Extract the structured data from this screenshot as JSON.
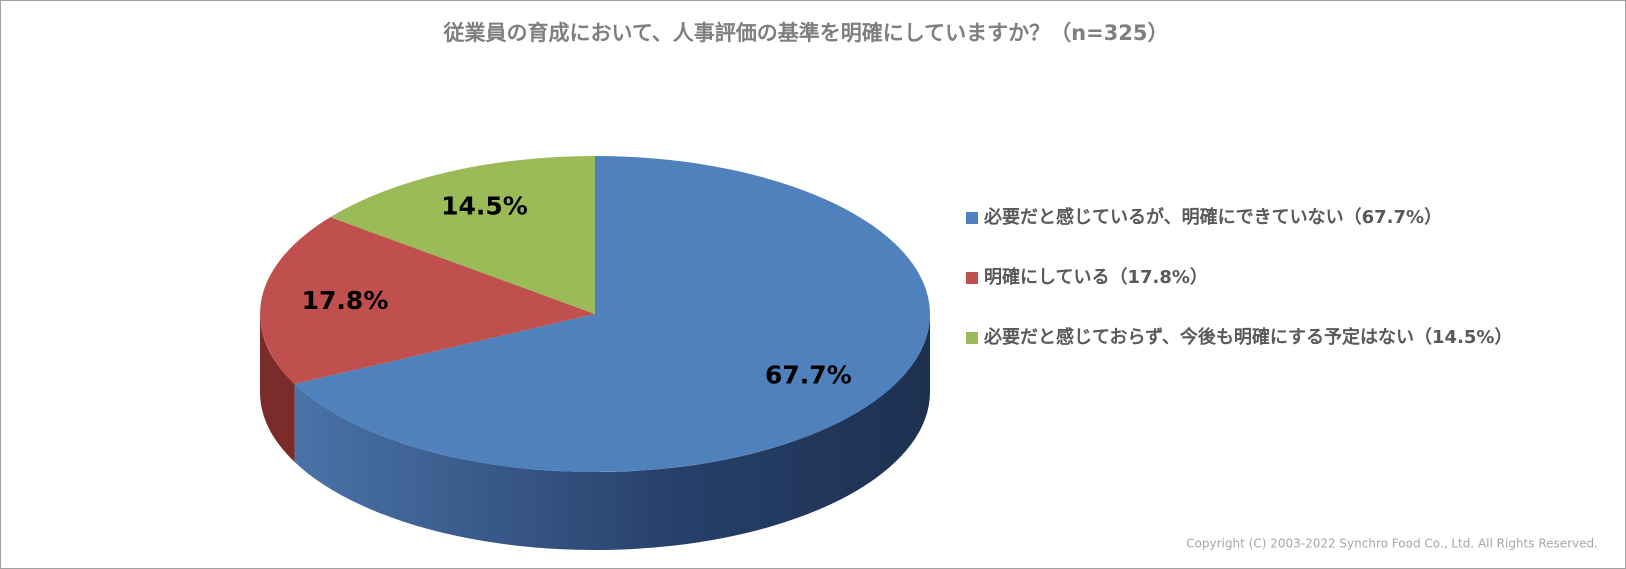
{
  "chart_data": {
    "type": "pie3d",
    "title": "従業員の育成において、人事評価の基準を明確にしていますか？（n=325）",
    "categories": [
      "必要だと感じているが、明確にできていない（67.7%）",
      "明確にしている（17.8%）",
      "必要だと感じておらず、今後も明確にする予定はない（14.5%）"
    ],
    "values": [
      67.7,
      17.8,
      14.5
    ],
    "value_labels": [
      "67.7%",
      "17.8%",
      "14.5%"
    ],
    "colors": [
      "#4f81bd",
      "#c0504d",
      "#9bbb59"
    ],
    "side_colors": [
      "#1f3452",
      "#7b2b29",
      "#5d7a2e"
    ],
    "legend": "right",
    "footnote": "Copyright (C) 2003-2022   Synchro Food Co., Ltd. All Rights Reserved."
  }
}
